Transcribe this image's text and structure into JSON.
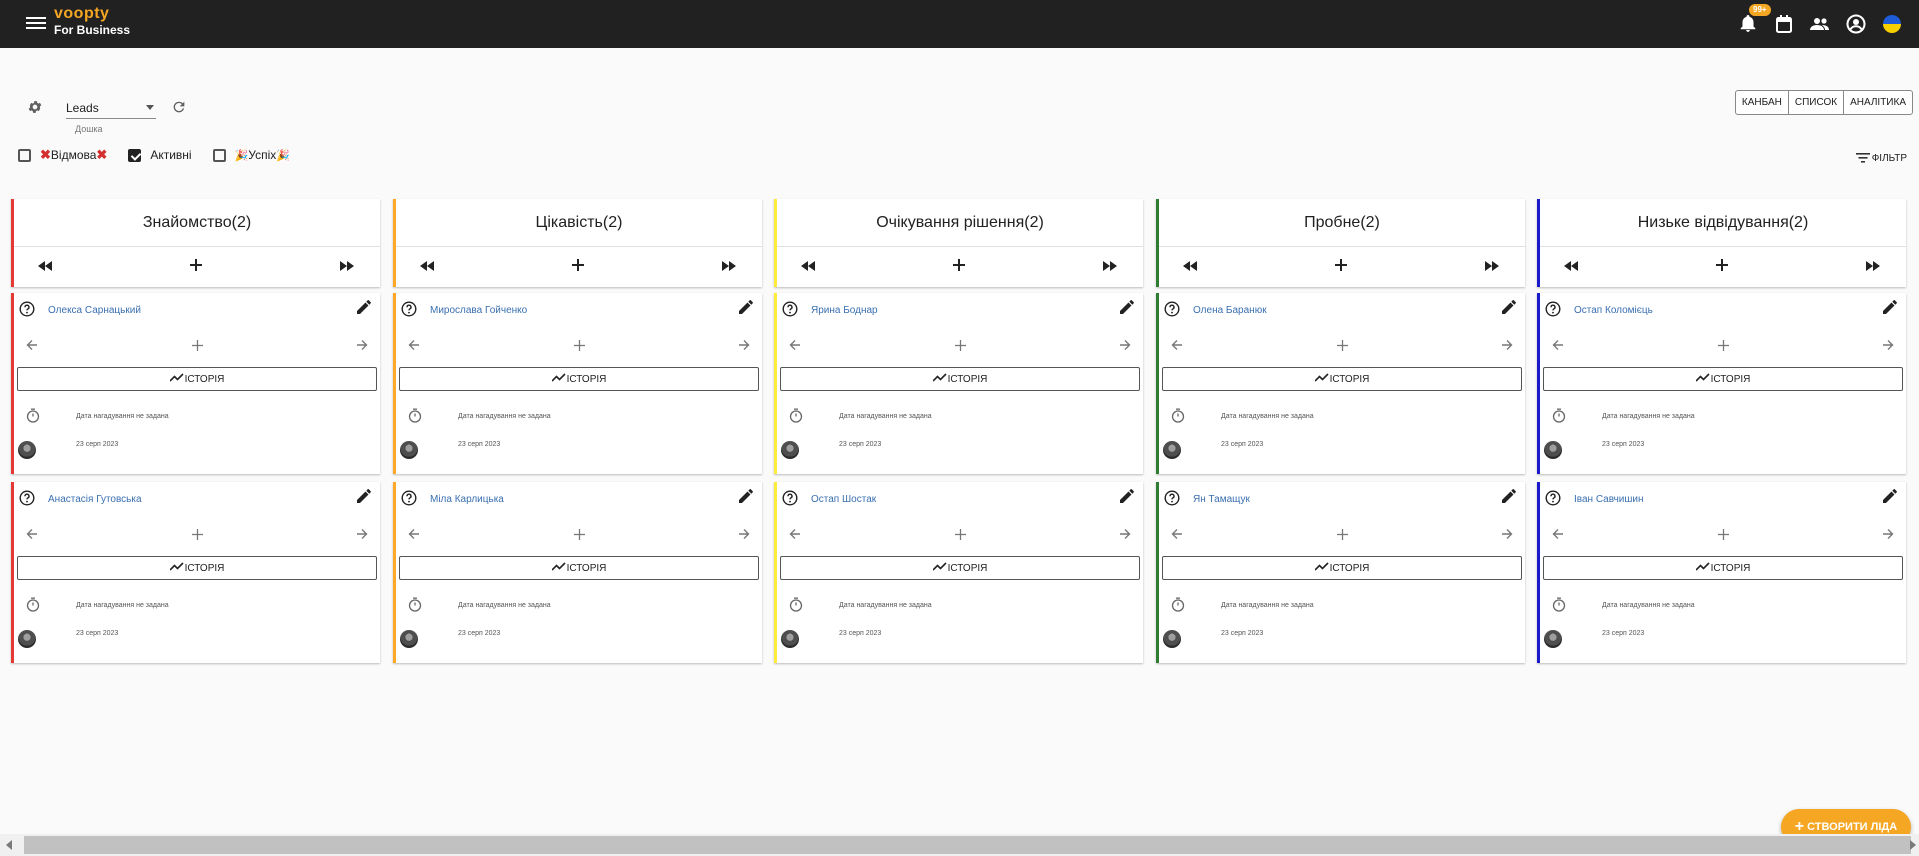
{
  "app": {
    "brand": "voopty",
    "brand_sub": "For Business",
    "notification_count": "99+"
  },
  "toolbar": {
    "board_value": "Leads",
    "board_hint": "Дошка",
    "views": [
      "КАНБАН",
      "СПИСОК",
      "АНАЛІТИКА"
    ],
    "filters": [
      {
        "label": "Відмова",
        "checked": false,
        "deco": "❌"
      },
      {
        "label": "Активні",
        "checked": true,
        "deco": ""
      },
      {
        "label": "Успіх",
        "checked": false,
        "deco": "🎉"
      }
    ],
    "filter_btn": "ФІЛЬТР"
  },
  "card_labels": {
    "history": "ІСТОРІЯ",
    "reminder": "Дата нагадування не задана",
    "date": "23 серп 2023"
  },
  "columns": [
    {
      "title": "Знайомство(2)",
      "color": "#e53935",
      "cards": [
        "Олекса Сарнацький",
        "Анастасія Гутовська"
      ]
    },
    {
      "title": "Цікавість(2)",
      "color": "#ffa726",
      "cards": [
        "Мирослава Гойченко",
        "Міла Карлицька"
      ]
    },
    {
      "title": "Очікування рішення(2)",
      "color": "#ffeb3b",
      "cards": [
        "Ярина Боднар",
        "Остап Шостак"
      ]
    },
    {
      "title": "Пробне(2)",
      "color": "#2e7d32",
      "cards": [
        "Олена Баранюк",
        "Ян Тамащук"
      ]
    },
    {
      "title": "Низьке відвідування(2)",
      "color": "#1a1acb",
      "cards": [
        "Остап Коломієць",
        "Іван Савчишин"
      ]
    }
  ],
  "fab": {
    "label": "СТВОРИТИ ЛІДА"
  }
}
